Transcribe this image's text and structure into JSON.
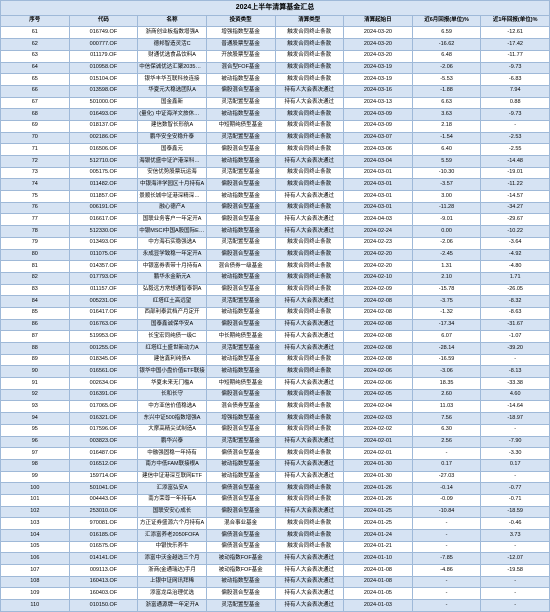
{
  "title": "2024上半年清算基金汇总",
  "columns": {
    "seq": "序号",
    "code": "代码",
    "name": "名称",
    "type": "投资类型",
    "reason": "清算类型",
    "date": "清算起始日",
    "r1": "近6月回报(单位)%",
    "r2": "近1年回报(单位)%"
  },
  "rows": [
    {
      "seq": "61",
      "code": "016749.OF",
      "name": "浙商创业板指数增强A",
      "type": "增强指数型基金",
      "reason": "触发合同终止条款",
      "date": "2024-03-20",
      "r1": "6.59",
      "r2": "-12.61"
    },
    {
      "seq": "62",
      "code": "000777.OF",
      "name": "德邦智造灵活C",
      "type": "普通股票型基金",
      "reason": "触发合同终止条款",
      "date": "2024-03-20",
      "r1": "-16.62",
      "r2": "-17.42"
    },
    {
      "seq": "63",
      "code": "011179.OF",
      "name": "财通优选食品饮料A",
      "type": "开放股票型基金",
      "reason": "触发合同终止条款",
      "date": "2024-03-20",
      "r1": "6.48",
      "r2": "-11.77"
    },
    {
      "seq": "64",
      "code": "010958.OF",
      "name": "中信保诚优达汇聚2035三年持有",
      "type": "混合型FOF基金",
      "reason": "触发合同终止条款",
      "date": "2024-03-19",
      "r1": "-2.06",
      "r2": "-9.73"
    },
    {
      "seq": "65",
      "code": "015104.OF",
      "name": "银华丰华互联科技连接",
      "type": "被动指数型基金",
      "reason": "触发合同终止条款",
      "date": "2024-03-19",
      "r1": "-5.53",
      "r2": "-6.83"
    },
    {
      "seq": "66",
      "code": "013598.OF",
      "name": "华夏元大稳选团队A",
      "type": "偏股混合型基金",
      "reason": "持有人大会表决通过",
      "date": "2024-03-16",
      "r1": "-1.88",
      "r2": "7.94"
    },
    {
      "seq": "67",
      "code": "501000.OF",
      "name": "国金鑫新",
      "type": "灵活配置型基金",
      "reason": "持有人大会表决通过",
      "date": "2024-03-13",
      "r1": "6.63",
      "r2": "0.88"
    },
    {
      "seq": "68",
      "code": "016493.OF",
      "name": "(量化) 中证海洋文旅休闲和相相A",
      "type": "被动指数型基金",
      "reason": "触发合同终止条款",
      "date": "2024-03-09",
      "r1": "3.63",
      "r2": "-9.73"
    },
    {
      "seq": "69",
      "code": "018137.OF",
      "name": "建信数智长形航A",
      "type": "中短期纯债型基金",
      "reason": "触发合同终止条款",
      "date": "2024-03-09",
      "r1": "2.18",
      "r2": "-"
    },
    {
      "seq": "70",
      "code": "002186.OF",
      "name": "鹏华安全安稳升泰",
      "type": "灵活配置型基金",
      "reason": "触发合同终止条款",
      "date": "2024-03-07",
      "r1": "-1.54",
      "r2": "-2.53"
    },
    {
      "seq": "71",
      "code": "016506.OF",
      "name": "国泰鑫元",
      "type": "偏股混合型基金",
      "reason": "触发合同终止条款",
      "date": "2024-03-06",
      "r1": "6.40",
      "r2": "-2.55"
    },
    {
      "seq": "72",
      "code": "512710.OF",
      "name": "海银优盛中证沪港深科技龙头ETF",
      "type": "被动指数型基金",
      "reason": "持有人大会表决通过",
      "date": "2024-03-04",
      "r1": "5.59",
      "r2": "-14.48"
    },
    {
      "seq": "73",
      "code": "005175.OF",
      "name": "安信优势股票玩运海",
      "type": "灵活配置型基金",
      "reason": "触发合同终止条款",
      "date": "2024-03-01",
      "r1": "-10.30",
      "r2": "-19.01"
    },
    {
      "seq": "74",
      "code": "011482.OF",
      "name": "中银海洋学园区十月持有A",
      "type": "偏股混合型基金",
      "reason": "触发合同终止条款",
      "date": "2024-03-01",
      "r1": "-3.57",
      "r2": "-11.22"
    },
    {
      "seq": "75",
      "code": "011857.OF",
      "name": "景顺长城中证港深精深龙工主题ETF",
      "type": "被动指数型基金",
      "reason": "持有人大会表决通过",
      "date": "2024-03-01",
      "r1": "3.00",
      "r2": "-14.57"
    },
    {
      "seq": "76",
      "code": "006191.OF",
      "name": "融心德产A",
      "type": "偏股混合型基金",
      "reason": "触发合同终止条款",
      "date": "2024-03-01",
      "r1": "-11.28",
      "r2": "-34.27"
    },
    {
      "seq": "77",
      "code": "016617.OF",
      "name": "国联业务客户一年定开A",
      "type": "偏股混合型基金",
      "reason": "持有人大会表决通过",
      "date": "2024-04-03",
      "r1": "-9.01",
      "r2": "-29.67"
    },
    {
      "seq": "78",
      "code": "512330.OF",
      "name": "中银MSCI中国A股国际ETF",
      "type": "被动指数型基金",
      "reason": "持有人大会表决通过",
      "date": "2024-02-24",
      "r1": "0.00",
      "r2": "-10.22"
    },
    {
      "seq": "79",
      "code": "013493.OF",
      "name": "中方海石实稳强选A",
      "type": "灵活配置型基金",
      "reason": "触发合同终止条款",
      "date": "2024-02-23",
      "r1": "-2.06",
      "r2": "-3.64"
    },
    {
      "seq": "80",
      "code": "011075.OF",
      "name": "永成显学致稳一年定开A",
      "type": "偏股混合型基金",
      "reason": "触发合同终止条款",
      "date": "2024-02-20",
      "r1": "-2.45",
      "r2": "-4.92"
    },
    {
      "seq": "81",
      "code": "014357.OF",
      "name": "中银富券表带十月持有A",
      "type": "混合债券一级基金",
      "reason": "触发合同终止条款",
      "date": "2024-02-20",
      "r1": "1.31",
      "r2": "-4.80"
    },
    {
      "seq": "82",
      "code": "017793.OF",
      "name": "鹏华永金新元A",
      "type": "被动指数型基金",
      "reason": "触发合同终止条款",
      "date": "2024-02-10",
      "r1": "2.10",
      "r2": "1.71"
    },
    {
      "seq": "83",
      "code": "011157.OF",
      "name": "弘毅远方常想通智泰铜A",
      "type": "偏股混合型基金",
      "reason": "触发合同终止条款",
      "date": "2024-02-09",
      "r1": "-15.78",
      "r2": "-26.05"
    },
    {
      "seq": "84",
      "code": "005231.OF",
      "name": "红塔红土高远望",
      "type": "灵活配置型基金",
      "reason": "持有人大会表决通过",
      "date": "2024-02-08",
      "r1": "-3.75",
      "r2": "-8.32"
    },
    {
      "seq": "85",
      "code": "016417.OF",
      "name": "西部利泰武档产月定开",
      "type": "被动指数型基金",
      "reason": "触发合同终止条款",
      "date": "2024-02-08",
      "r1": "-1.32",
      "r2": "-8.63"
    },
    {
      "seq": "86",
      "code": "016763.OF",
      "name": "国泰鑫诚保华安A",
      "type": "偏股混合型基金",
      "reason": "持有人大会表决通过",
      "date": "2024-02-08",
      "r1": "-17.34",
      "r2": "-31.67"
    },
    {
      "seq": "87",
      "code": "519953.OF",
      "name": "长宝宏同纯债一级C",
      "type": "中长期纯债型基金",
      "reason": "持有人大会表决通过",
      "date": "2024-02-08",
      "r1": "6.07",
      "r2": "-1.07"
    },
    {
      "seq": "88",
      "code": "001255.OF",
      "name": "红塔红土盛世新动力A",
      "type": "灵活配置型基金",
      "reason": "持有人大会表决通过",
      "date": "2024-02-08",
      "r1": "-28.14",
      "r2": "-39.20"
    },
    {
      "seq": "89",
      "code": "018345.OF",
      "name": "建信鑫利纯债A",
      "type": "被动指数型基金",
      "reason": "触发合同终止条款",
      "date": "2024-02-08",
      "r1": "-16.59",
      "r2": "-"
    },
    {
      "seq": "90",
      "code": "016561.OF",
      "name": "银华中国小盘价值ETF联接",
      "type": "被动指数型基金",
      "reason": "触发合同终止条款",
      "date": "2024-02-06",
      "r1": "-3.06",
      "r2": "-8.13"
    },
    {
      "seq": "91",
      "code": "002634.OF",
      "name": "华夏未来无门槛A",
      "type": "中短期纯债型基金",
      "reason": "持有人大会表决通过",
      "date": "2024-02-06",
      "r1": "18.35",
      "r2": "-33.38"
    },
    {
      "seq": "92",
      "code": "016391.OF",
      "name": "长和长守",
      "type": "偏股混合型基金",
      "reason": "触发合同终止条款",
      "date": "2024-02-05",
      "r1": "2.60",
      "r2": "4.60"
    },
    {
      "seq": "93",
      "code": "017065.OF",
      "name": "中方亚信价值稳选A",
      "type": "混合债券型基金",
      "reason": "触发合同终止条款",
      "date": "2024-02-04",
      "r1": "11.03",
      "r2": "-14.64"
    },
    {
      "seq": "94",
      "code": "016321.OF",
      "name": "东兴中证500指数增强A",
      "type": "增强指数型基金",
      "reason": "触发合同终止条款",
      "date": "2024-02-03",
      "r1": "7.56",
      "r2": "-18.97"
    },
    {
      "seq": "95",
      "code": "017596.OF",
      "name": "大摩高精尖试制造A",
      "type": "偏股混合型基金",
      "reason": "触发合同终止条款",
      "date": "2024-02-02",
      "r1": "6.30",
      "r2": "-"
    },
    {
      "seq": "96",
      "code": "003823.OF",
      "name": "鹏华兴泰",
      "type": "灵活配置型基金",
      "reason": "持有人大会表决通过",
      "date": "2024-02-01",
      "r1": "2.56",
      "r2": "-7.90"
    },
    {
      "seq": "97",
      "code": "016487.OF",
      "name": "中融强固稳一年持有",
      "type": "偏债混合型基金",
      "reason": "触发合同终止条款",
      "date": "2024-02-01",
      "r1": "-",
      "r2": "-3.30"
    },
    {
      "seq": "98",
      "code": "016512.OF",
      "name": "南方中低FAM联接根A",
      "type": "被动指数型基金",
      "reason": "持有人大会表决通过",
      "date": "2024-01-30",
      "r1": "0.17",
      "r2": "0.17"
    },
    {
      "seq": "99",
      "code": "159714.OF",
      "name": "建信中证港深互联网ETF",
      "type": "被动指数型基金",
      "reason": "持有人大会表决通过",
      "date": "2024-01-30",
      "r1": "-27.03",
      "r2": "-"
    },
    {
      "seq": "100",
      "code": "501041.OF",
      "name": "汇添富弘安A",
      "type": "偏债混合型基金",
      "reason": "触发合同终止条款",
      "date": "2024-01-26",
      "r1": "-0.14",
      "r2": "-0.77"
    },
    {
      "seq": "101",
      "code": "004443.OF",
      "name": "南方荣尊一年持有A",
      "type": "偏债混合型基金",
      "reason": "触发合同终止条款",
      "date": "2024-01-26",
      "r1": "-0.09",
      "r2": "-0.71"
    },
    {
      "seq": "102",
      "code": "253010.OF",
      "name": "国联安安心成长",
      "type": "偏股混合型基金",
      "reason": "持有人大会表决通过",
      "date": "2024-01-25",
      "r1": "-10.84",
      "r2": "-18.59"
    },
    {
      "seq": "103",
      "code": "970081.OF",
      "name": "方正证券盛源六个月持有A",
      "type": "混合事业基金",
      "reason": "触发合同终止条款",
      "date": "2024-01-25",
      "r1": "-",
      "r2": "-0.46"
    },
    {
      "seq": "104",
      "code": "016185.OF",
      "name": "汇添富养老2050FOFA",
      "type": "偏债混合型基金",
      "reason": "触发合同终止条款",
      "date": "2024-01-24",
      "r1": "-",
      "r2": "3.73"
    },
    {
      "seq": "105",
      "code": "016575.OF",
      "name": "中银快乐养牛",
      "type": "偏债混合型基金",
      "reason": "触发合同终止条款",
      "date": "2024-01-21",
      "r1": "-",
      "r2": "-"
    },
    {
      "seq": "106",
      "code": "014141.OF",
      "name": "添富中沃金越选三个月",
      "type": "被动指数FOF基金",
      "reason": "持有人大会表决通过",
      "date": "2024-01-10",
      "r1": "-7.85",
      "r2": "-12.07"
    },
    {
      "seq": "107",
      "code": "009113.OF",
      "name": "浙商(金通瑞达)手月",
      "type": "被动指数FOF基金",
      "reason": "持有人大会表决通过",
      "date": "2024-01-08",
      "r1": "-4.86",
      "r2": "-19.58"
    },
    {
      "seq": "108",
      "code": "160413.OF",
      "name": "上银中证网讯拜稀",
      "type": "被动指数型基金",
      "reason": "持有人大会表决通过",
      "date": "2024-01-08",
      "r1": "-",
      "r2": "-"
    },
    {
      "seq": "109",
      "code": "160403.OF",
      "name": "添富龙岳治理优选",
      "type": "偏股混合型基金",
      "reason": "持有人大会表决通过",
      "date": "2024-01-05",
      "r1": "-",
      "r2": "-"
    },
    {
      "seq": "110",
      "code": "010150.OF",
      "name": "浙富通源牌一年定开A",
      "type": "灵活配置型基金",
      "reason": "持有人大会表决通过",
      "date": "2024-01-03",
      "r1": "-",
      "r2": "-"
    }
  ],
  "colors": {
    "even_bg": "#d6e3f3",
    "odd_bg": "#ffffff",
    "border": "#9fb9d8"
  }
}
